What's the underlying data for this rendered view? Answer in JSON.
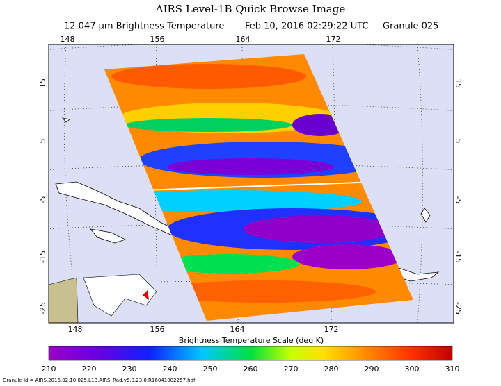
{
  "header": {
    "title": "AIRS Level-1B Quick Browse Image",
    "product": "12.047 μm Brightness Temperature",
    "time": "Feb 10, 2016 02:29:22 UTC",
    "granule": "Granule 025"
  },
  "map": {
    "lon_top": [
      "148",
      "156",
      "164",
      "172"
    ],
    "lon_bottom": [
      "148",
      "156",
      "164",
      "172"
    ],
    "lat_left": [
      "15",
      "5",
      "-5",
      "-15",
      "-25"
    ],
    "lat_right": [
      "15",
      "5",
      "-5",
      "-15",
      "-25"
    ]
  },
  "colorbar": {
    "title": "Brightness Temperature Scale (deg K)",
    "ticks": [
      "210",
      "220",
      "230",
      "240",
      "250",
      "260",
      "270",
      "280",
      "290",
      "300",
      "310"
    ]
  },
  "footer": {
    "granule_id": "Granule Id = AIRS.2016.02.10.025.L1B.AIRS_Rad.v5.0.23.0.R16041002257.hdf"
  }
}
